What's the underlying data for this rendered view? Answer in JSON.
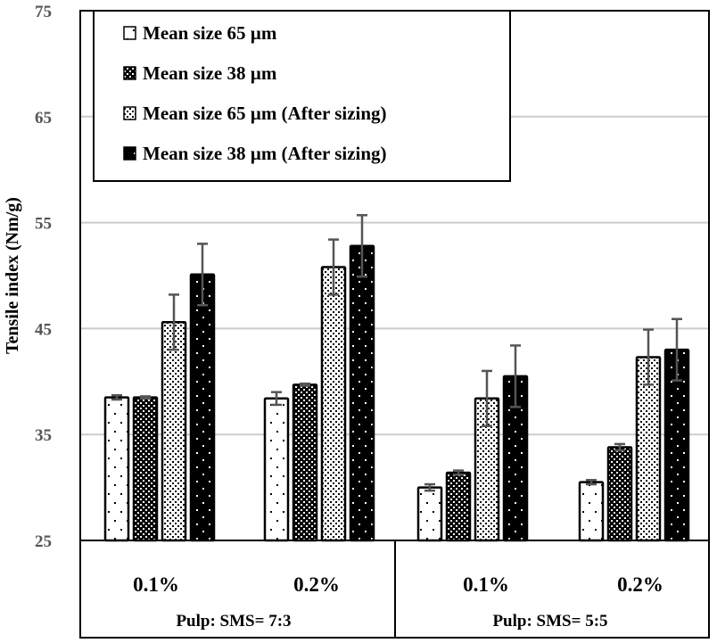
{
  "chart_data": {
    "type": "bar",
    "title": "",
    "xlabel": "",
    "ylabel": "Tensile index (Nm/g)",
    "ylim": [
      25,
      75
    ],
    "yticks": [
      "25",
      "35",
      "45",
      "55",
      "65",
      "75"
    ],
    "grid": true,
    "legend_position": "top-left",
    "categories": [
      "0.1%",
      "0.2%",
      "0.1%",
      "0.2%"
    ],
    "groups": [
      "Pulp: SMS= 7:3",
      "Pulp: SMS= 5:5"
    ],
    "series": [
      {
        "name": "Mean size 65 µm",
        "values": [
          38.5,
          38.4,
          30.0,
          30.5
        ],
        "errors": [
          0.2,
          0.6,
          0.3,
          0.2
        ]
      },
      {
        "name": "Mean size 38 µm",
        "values": [
          38.5,
          39.7,
          31.4,
          33.8
        ],
        "errors": [
          0.1,
          0.1,
          0.2,
          0.3
        ]
      },
      {
        "name": "Mean size 65 µm (After sizing)",
        "values": [
          45.6,
          50.8,
          38.4,
          42.3
        ],
        "errors": [
          2.6,
          2.6,
          2.6,
          2.6
        ]
      },
      {
        "name": "Mean size 38 µm (After sizing)",
        "values": [
          50.1,
          52.8,
          40.5,
          43.0
        ],
        "errors": [
          2.9,
          2.9,
          2.9,
          2.9
        ]
      }
    ]
  }
}
